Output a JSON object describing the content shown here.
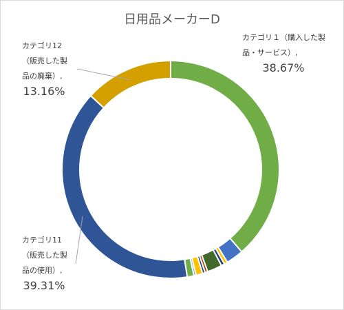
{
  "chart_data": {
    "type": "pie",
    "title": "日用品メーカーD",
    "legend": "none",
    "slices": [
      {
        "label_lines": [
          "カテゴリ１（購入した製",
          "品・サービス）,"
        ],
        "value": 38.67,
        "pct_label": "38.67%",
        "color": "#70ad47"
      },
      {
        "label_lines": [],
        "value": 2.6,
        "pct_label": "",
        "color": "#4472c4"
      },
      {
        "label_lines": [],
        "value": 0.5,
        "pct_label": "",
        "color": "#ffc000"
      },
      {
        "label_lines": [],
        "value": 0.5,
        "pct_label": "",
        "color": "#264478"
      },
      {
        "label_lines": [],
        "value": 2.2,
        "pct_label": "",
        "color": "#43682b"
      },
      {
        "label_lines": [],
        "value": 0.4,
        "pct_label": "",
        "color": "#9e480e"
      },
      {
        "label_lines": [],
        "value": 0.4,
        "pct_label": "",
        "color": "#264478"
      },
      {
        "label_lines": [],
        "value": 1.0,
        "pct_label": "",
        "color": "#ffc000"
      },
      {
        "label_lines": [],
        "value": 0.3,
        "pct_label": "",
        "color": "#5b9bd5"
      },
      {
        "label_lines": [],
        "value": 1.0,
        "pct_label": "",
        "color": "#70ad47"
      },
      {
        "label_lines": [
          "カテゴリ11",
          "（販売した製",
          "品の使用）,"
        ],
        "value": 39.31,
        "pct_label": "39.31%",
        "color": "#2f5597"
      },
      {
        "label_lines": [
          "カテゴリ12",
          "（販売した製",
          "品の廃棄）,"
        ],
        "value": 13.16,
        "pct_label": "13.16%",
        "color": "#d4a000"
      }
    ]
  }
}
